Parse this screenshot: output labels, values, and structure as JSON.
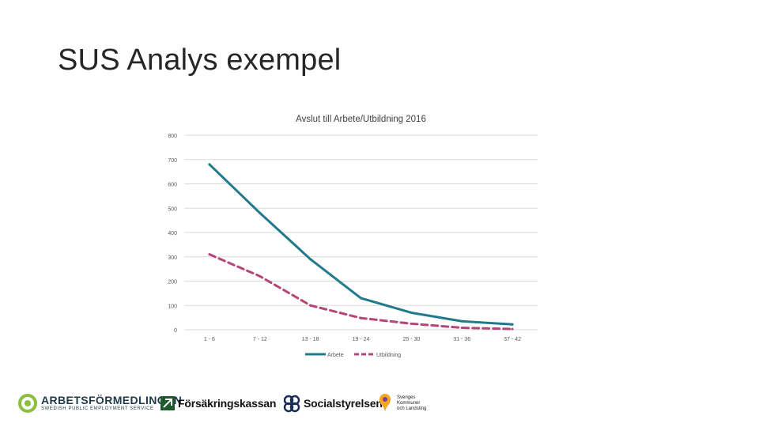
{
  "slide": {
    "title": "SUS Analys exempel"
  },
  "chart_data": {
    "type": "line",
    "title": "Avslut till Arbete/Utbildning 2016",
    "categories": [
      "1 - 6",
      "7 - 12",
      "13 - 18",
      "19 - 24",
      "25 - 30",
      "31 - 36",
      "37 - 42"
    ],
    "series": [
      {
        "name": "Arbete",
        "values": [
          680,
          480,
          290,
          130,
          70,
          35,
          22
        ],
        "color": "#217a8c",
        "style": "solid"
      },
      {
        "name": "Utbildning",
        "values": [
          310,
          220,
          100,
          48,
          25,
          8,
          3
        ],
        "color": "#b5467a",
        "style": "dashed"
      }
    ],
    "ylim": [
      0,
      800
    ],
    "yticks": [
      0,
      100,
      200,
      300,
      400,
      500,
      600,
      700,
      800
    ],
    "grid": true,
    "legend": "bottom",
    "xlabel": "",
    "ylabel": ""
  },
  "logos": {
    "arbetsformedlingen": {
      "name": "ARBETSFÖRMEDLINGEN",
      "tagline": "SWEDISH PUBLIC EMPLOYMENT SERVICE"
    },
    "forsakringskassan": {
      "name": "Försäkringskassan"
    },
    "socialstyrelsen": {
      "name": "Socialstyrelsen"
    },
    "skl": {
      "line1": "Sveriges",
      "line2": "Kommuner",
      "line3": "och Landsting"
    }
  }
}
